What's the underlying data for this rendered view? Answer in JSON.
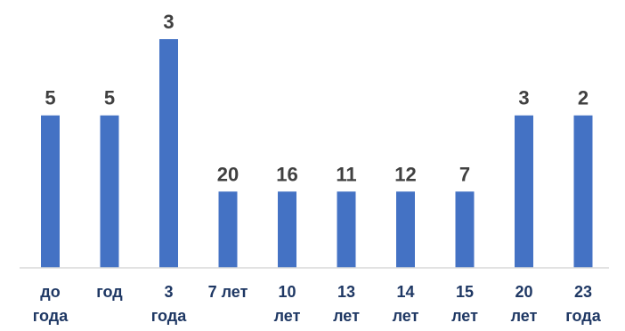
{
  "chart_data": {
    "type": "bar",
    "title": "",
    "xlabel": "",
    "ylabel": "",
    "categories": [
      [
        "до",
        "года"
      ],
      [
        "год"
      ],
      [
        "3",
        "года"
      ],
      [
        "7 лет"
      ],
      [
        "10",
        "лет"
      ],
      [
        "13",
        "лет"
      ],
      [
        "14",
        "лет"
      ],
      [
        "15",
        "лет"
      ],
      [
        "20",
        "лет"
      ],
      [
        "23",
        "года"
      ]
    ],
    "data_labels": [
      "5",
      "5",
      "3",
      "20",
      "16",
      "11",
      "12",
      "7",
      "3",
      "2"
    ],
    "relative_heights": [
      2,
      2,
      3,
      1,
      1,
      1,
      1,
      1,
      2,
      2
    ],
    "ylim": [
      0,
      3
    ],
    "grid": false,
    "legend": "none",
    "colors": {
      "bar": "#4472c4",
      "value_label": "#404040",
      "category_label": "#1f3864",
      "axis": "#d9d9d9"
    }
  }
}
